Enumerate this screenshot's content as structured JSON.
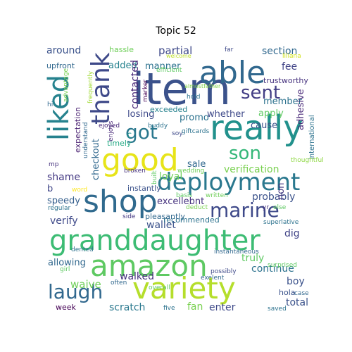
{
  "title": "Topic 52",
  "words": [
    {
      "text": "item",
      "color": "#3b528b"
    },
    {
      "text": "able",
      "color": "#31688e"
    },
    {
      "text": "really",
      "color": "#21918c"
    },
    {
      "text": "liked",
      "color": "#26828e"
    },
    {
      "text": "thank",
      "color": "#3e4989"
    },
    {
      "text": "sent",
      "color": "#433e85"
    },
    {
      "text": "good",
      "color": "#e7e419"
    },
    {
      "text": "got",
      "color": "#2a788e"
    },
    {
      "text": "son",
      "color": "#35b779"
    },
    {
      "text": "shop",
      "color": "#306a8e"
    },
    {
      "text": "deployment",
      "color": "#2a788e"
    },
    {
      "text": "marine",
      "color": "#3e4989"
    },
    {
      "text": "granddaughter",
      "color": "#3dbc74"
    },
    {
      "text": "amazon",
      "color": "#5ec962"
    },
    {
      "text": "laugh",
      "color": "#31688e"
    },
    {
      "text": "variety",
      "color": "#b5de2b"
    },
    {
      "text": "around",
      "color": "#3b528b"
    },
    {
      "text": "hassle",
      "color": "#6ece58"
    },
    {
      "text": "partial",
      "color": "#3e4989"
    },
    {
      "text": "section",
      "color": "#31688e"
    },
    {
      "text": "fee",
      "color": "#414487"
    },
    {
      "text": "upfront",
      "color": "#31688e"
    },
    {
      "text": "added",
      "color": "#26828e"
    },
    {
      "text": "manner",
      "color": "#2c728e"
    },
    {
      "text": "member",
      "color": "#2c728e"
    },
    {
      "text": "adhesive",
      "color": "#482878"
    },
    {
      "text": "international",
      "color": "#2c728e"
    },
    {
      "text": "trustworthy",
      "color": "#46327e"
    },
    {
      "text": "losing",
      "color": "#3e4989"
    },
    {
      "text": "promo",
      "color": "#2c728e"
    },
    {
      "text": "exceeded",
      "color": "#26828e"
    },
    {
      "text": "whether",
      "color": "#3e4989"
    },
    {
      "text": "apply",
      "color": "#5ec962"
    },
    {
      "text": "cause",
      "color": "#3b528b"
    },
    {
      "text": "checkout",
      "color": "#31688e"
    },
    {
      "text": "expectation",
      "color": "#481f70"
    },
    {
      "text": "timely",
      "color": "#23a983"
    },
    {
      "text": "c",
      "color": "#21918c"
    },
    {
      "text": "sale",
      "color": "#31688e"
    },
    {
      "text": "verification",
      "color": "#7ad151"
    },
    {
      "text": "loyal",
      "color": "#6ece58"
    },
    {
      "text": "shame",
      "color": "#443983"
    },
    {
      "text": "b",
      "color": "#404688"
    },
    {
      "text": "speedy",
      "color": "#355f8d"
    },
    {
      "text": "probably",
      "color": "#3b528b"
    },
    {
      "text": "non",
      "color": "#453882"
    },
    {
      "text": "excellebnt",
      "color": "#46327e"
    },
    {
      "text": "verify",
      "color": "#3e4989"
    },
    {
      "text": "wallet",
      "color": "#3b528b"
    },
    {
      "text": "recommended",
      "color": "#2c728e"
    },
    {
      "text": "dig",
      "color": "#414487"
    },
    {
      "text": "truly",
      "color": "#5ec962"
    },
    {
      "text": "continue",
      "color": "#2c728e"
    },
    {
      "text": "boy",
      "color": "#3b528b"
    },
    {
      "text": "allowing",
      "color": "#31688e"
    },
    {
      "text": "waive",
      "color": "#6ece58"
    },
    {
      "text": "walked",
      "color": "#46327e"
    },
    {
      "text": "enter",
      "color": "#3e4989"
    },
    {
      "text": "scratch",
      "color": "#2a788e"
    },
    {
      "text": "fan",
      "color": "#7ad151"
    },
    {
      "text": "total",
      "color": "#3b528b"
    },
    {
      "text": "week",
      "color": "#440154"
    },
    {
      "text": "hola",
      "color": "#3b528b"
    },
    {
      "text": "far",
      "color": "#3e4989"
    },
    {
      "text": "welcome",
      "color": "#bddf26"
    },
    {
      "text": "liliana",
      "color": "#d2e21b"
    },
    {
      "text": "efficient",
      "color": "#5ec962"
    },
    {
      "text": "contacted",
      "color": "#482878"
    },
    {
      "text": "almostfather",
      "color": "#84d44b"
    },
    {
      "text": "advantage",
      "color": "#7ad151"
    },
    {
      "text": "frequently",
      "color": "#a2da37"
    },
    {
      "text": "hold",
      "color": "#2c728e"
    },
    {
      "text": "hi",
      "color": "#31688e"
    },
    {
      "text": "ejoyed",
      "color": "#482878"
    },
    {
      "text": "marker",
      "color": "#440154"
    },
    {
      "text": "buddy",
      "color": "#2c728e"
    },
    {
      "text": "soy",
      "color": "#3e4989"
    },
    {
      "text": "understand",
      "color": "#31688e"
    },
    {
      "text": "enjoys",
      "color": "#482878"
    },
    {
      "text": "giftcards",
      "color": "#2c728e"
    },
    {
      "text": "thoughtful",
      "color": "#8fd744"
    },
    {
      "text": "mp",
      "color": "#46327e"
    },
    {
      "text": "broken",
      "color": "#46327e"
    },
    {
      "text": "built",
      "color": "#5ec962"
    },
    {
      "text": "wedding",
      "color": "#6ece58"
    },
    {
      "text": "word",
      "color": "#fde725"
    },
    {
      "text": "instantly",
      "color": "#3b528b"
    },
    {
      "text": "basis",
      "color": "#5ec962"
    },
    {
      "text": "written",
      "color": "#6ece58"
    },
    {
      "text": "else",
      "color": "#5ec962"
    },
    {
      "text": "regular",
      "color": "#2c728e"
    },
    {
      "text": "deduct",
      "color": "#7ad151"
    },
    {
      "text": "side",
      "color": "#443983"
    },
    {
      "text": "pleasantly",
      "color": "#31688e"
    },
    {
      "text": "superlative",
      "color": "#2c728e"
    },
    {
      "text": "dented",
      "color": "#2c728e"
    },
    {
      "text": "instantaneous",
      "color": "#31688e"
    },
    {
      "text": "surprised",
      "color": "#5ec962"
    },
    {
      "text": "girl",
      "color": "#5ec962"
    },
    {
      "text": "overall",
      "color": "#5ec962"
    },
    {
      "text": "possibly",
      "color": "#3e4989"
    },
    {
      "text": "exelent",
      "color": "#31688e"
    },
    {
      "text": "yr",
      "color": "#46327e"
    },
    {
      "text": "often",
      "color": "#31688e"
    },
    {
      "text": "five",
      "color": "#2c728e"
    },
    {
      "text": "case",
      "color": "#31688e"
    },
    {
      "text": "saved",
      "color": "#2c728e"
    }
  ]
}
